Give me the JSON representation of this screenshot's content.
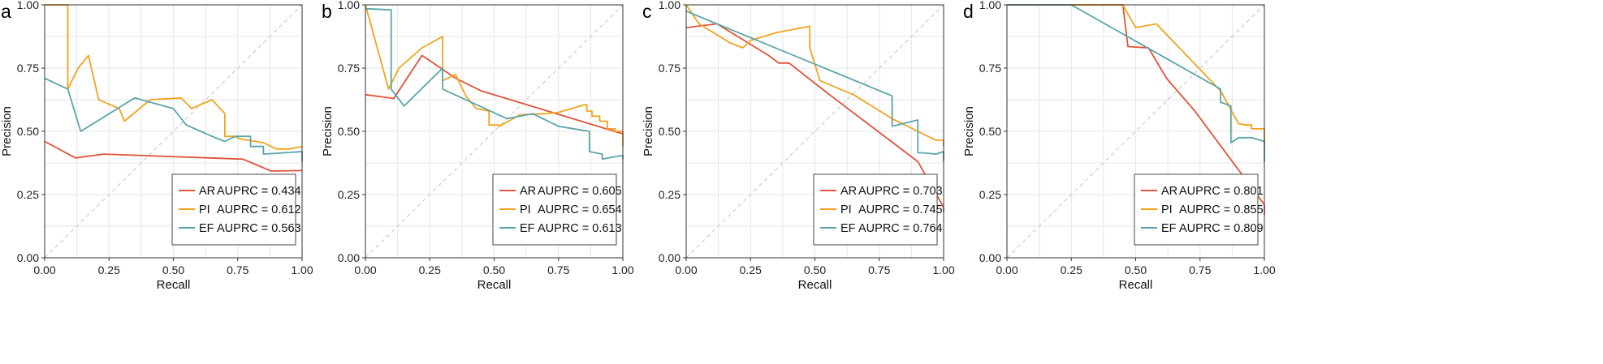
{
  "colors": {
    "AR": "#E0533A",
    "PI": "#F2A31D",
    "EF": "#5AA5AB",
    "grid": "#e6e6e6",
    "diag": "#c4c4c4",
    "frame": "#333333"
  },
  "chart_data": [
    {
      "panel": "a",
      "type": "line",
      "xlabel": "Recall",
      "ylabel": "Precision",
      "xlim": [
        0,
        1
      ],
      "ylim": [
        0,
        1
      ],
      "grid": true,
      "legend_position": "bottom-right",
      "xticks": [
        "0.00",
        "0.25",
        "0.50",
        "0.75",
        "1.00"
      ],
      "yticks": [
        "0.00",
        "0.25",
        "0.50",
        "0.75",
        "1.00"
      ],
      "series": [
        {
          "key": "AR",
          "name": "AR",
          "legend": "AUPRC = 0.434",
          "x": [
            0,
            0.12,
            0.23,
            0.77,
            0.88,
            1.0
          ],
          "y": [
            0.46,
            0.395,
            0.41,
            0.39,
            0.343,
            0.345
          ]
        },
        {
          "key": "PI",
          "name": "PI",
          "legend": "AUPRC = 0.612",
          "x": [
            0,
            0.09,
            0.09,
            0.13,
            0.17,
            0.21,
            0.29,
            0.31,
            0.41,
            0.53,
            0.57,
            0.65,
            0.7,
            0.7,
            0.74,
            0.76,
            0.85,
            0.9,
            0.95,
            1.0
          ],
          "y": [
            1.0,
            1.0,
            0.667,
            0.75,
            0.8,
            0.625,
            0.59,
            0.54,
            0.625,
            0.632,
            0.59,
            0.625,
            0.57,
            0.48,
            0.48,
            0.47,
            0.455,
            0.43,
            0.43,
            0.44
          ]
        },
        {
          "key": "EF",
          "name": "EF",
          "legend": "AUPRC = 0.563",
          "x": [
            0,
            0.09,
            0.14,
            0.35,
            0.5,
            0.55,
            0.65,
            0.7,
            0.74,
            0.8,
            0.8,
            0.85,
            0.85,
            1.0,
            1.0
          ],
          "y": [
            0.71,
            0.667,
            0.5,
            0.632,
            0.59,
            0.525,
            0.48,
            0.46,
            0.48,
            0.48,
            0.44,
            0.44,
            0.41,
            0.42,
            0.38
          ]
        }
      ]
    },
    {
      "panel": "b",
      "type": "line",
      "xlabel": "Recall",
      "ylabel": "Precision",
      "xlim": [
        0,
        1
      ],
      "ylim": [
        0,
        1
      ],
      "grid": true,
      "legend_position": "bottom-right",
      "xticks": [
        "0.00",
        "0.25",
        "0.50",
        "0.75",
        "1.00"
      ],
      "yticks": [
        "0.00",
        "0.25",
        "0.50",
        "0.75",
        "1.00"
      ],
      "series": [
        {
          "key": "AR",
          "name": "AR",
          "legend": "AUPRC = 0.605",
          "x": [
            0,
            0.11,
            0.22,
            0.35,
            0.45,
            1.0
          ],
          "y": [
            0.645,
            0.63,
            0.8,
            0.71,
            0.66,
            0.49
          ]
        },
        {
          "key": "PI",
          "name": "PI",
          "legend": "AUPRC = 0.654",
          "x": [
            0,
            0.09,
            0.13,
            0.22,
            0.3,
            0.3,
            0.35,
            0.39,
            0.43,
            0.48,
            0.48,
            0.52,
            0.52,
            0.6,
            0.7,
            0.75,
            0.85,
            0.86,
            0.86,
            0.88,
            0.88,
            0.91,
            0.91,
            0.94,
            0.94,
            0.97,
            0.97,
            1.0,
            1.0
          ],
          "y": [
            1.0,
            0.667,
            0.75,
            0.83,
            0.875,
            0.7,
            0.725,
            0.64,
            0.59,
            0.58,
            0.525,
            0.525,
            0.52,
            0.565,
            0.57,
            0.575,
            0.605,
            0.605,
            0.58,
            0.58,
            0.56,
            0.56,
            0.54,
            0.54,
            0.51,
            0.51,
            0.5,
            0.5,
            0.44
          ]
        },
        {
          "key": "EF",
          "name": "EF",
          "legend": "AUPRC = 0.613",
          "x": [
            0,
            0.1,
            0.1,
            0.15,
            0.22,
            0.3,
            0.3,
            0.55,
            0.65,
            0.75,
            0.87,
            0.87,
            0.92,
            0.92,
            0.97,
            1.0,
            1.0
          ],
          "y": [
            0.985,
            0.98,
            0.667,
            0.6,
            0.67,
            0.75,
            0.667,
            0.55,
            0.57,
            0.52,
            0.5,
            0.42,
            0.41,
            0.39,
            0.4,
            0.405,
            0.39
          ]
        }
      ]
    },
    {
      "panel": "c",
      "type": "line",
      "xlabel": "Recall",
      "ylabel": "Precision",
      "xlim": [
        0,
        1
      ],
      "ylim": [
        0,
        1
      ],
      "grid": true,
      "legend_position": "bottom-right",
      "xticks": [
        "0.00",
        "0.25",
        "0.50",
        "0.75",
        "1.00"
      ],
      "yticks": [
        "0.00",
        "0.25",
        "0.50",
        "0.75",
        "1.00"
      ],
      "series": [
        {
          "key": "AR",
          "name": "AR",
          "legend": "AUPRC = 0.703",
          "x": [
            0,
            0.12,
            0.32,
            0.36,
            0.4,
            0.55,
            0.9,
            1.0,
            1.0
          ],
          "y": [
            0.91,
            0.925,
            0.8,
            0.77,
            0.77,
            0.65,
            0.38,
            0.2,
            0.18
          ]
        },
        {
          "key": "PI",
          "name": "PI",
          "legend": "AUPRC = 0.745",
          "x": [
            0,
            0.05,
            0.17,
            0.22,
            0.25,
            0.35,
            0.48,
            0.48,
            0.52,
            0.65,
            0.8,
            0.97,
            1.0,
            1.0
          ],
          "y": [
            1.0,
            0.925,
            0.85,
            0.83,
            0.86,
            0.89,
            0.915,
            0.83,
            0.7,
            0.645,
            0.55,
            0.465,
            0.465,
            0.44
          ]
        },
        {
          "key": "EF",
          "name": "EF",
          "legend": "AUPRC = 0.764",
          "x": [
            0,
            0.8,
            0.8,
            0.9,
            0.9,
            0.92,
            0.92,
            0.97,
            1.0,
            1.0
          ],
          "y": [
            0.975,
            0.64,
            0.52,
            0.545,
            0.415,
            0.415,
            0.415,
            0.41,
            0.42,
            0.38
          ]
        }
      ]
    },
    {
      "panel": "d",
      "type": "line",
      "xlabel": "Recall",
      "ylabel": "Precision",
      "xlim": [
        0,
        1
      ],
      "ylim": [
        0,
        1
      ],
      "grid": true,
      "legend_position": "bottom-right",
      "xticks": [
        "0.00",
        "0.25",
        "0.50",
        "0.75",
        "1.00"
      ],
      "yticks": [
        "0.00",
        "0.25",
        "0.50",
        "0.75",
        "1.00"
      ],
      "series": [
        {
          "key": "AR",
          "name": "AR",
          "legend": "AUPRC = 0.801",
          "x": [
            0,
            0.45,
            0.47,
            0.55,
            0.62,
            0.73,
            1.0,
            1.0
          ],
          "y": [
            1.0,
            1.0,
            0.835,
            0.83,
            0.71,
            0.58,
            0.21,
            0.17
          ]
        },
        {
          "key": "PI",
          "name": "PI",
          "legend": "AUPRC = 0.855",
          "x": [
            0,
            0.45,
            0.5,
            0.58,
            0.83,
            0.9,
            0.93,
            0.95,
            0.95,
            1.0,
            1.0
          ],
          "y": [
            1.0,
            1.0,
            0.91,
            0.925,
            0.66,
            0.53,
            0.525,
            0.525,
            0.51,
            0.51,
            0.44
          ]
        },
        {
          "key": "EF",
          "name": "EF",
          "legend": "AUPRC = 0.809",
          "x": [
            0,
            0.25,
            0.83,
            0.83,
            0.87,
            0.87,
            0.9,
            0.95,
            1.0,
            1.0
          ],
          "y": [
            1.0,
            1.0,
            0.667,
            0.615,
            0.6,
            0.455,
            0.475,
            0.475,
            0.46,
            0.38
          ]
        }
      ]
    }
  ]
}
